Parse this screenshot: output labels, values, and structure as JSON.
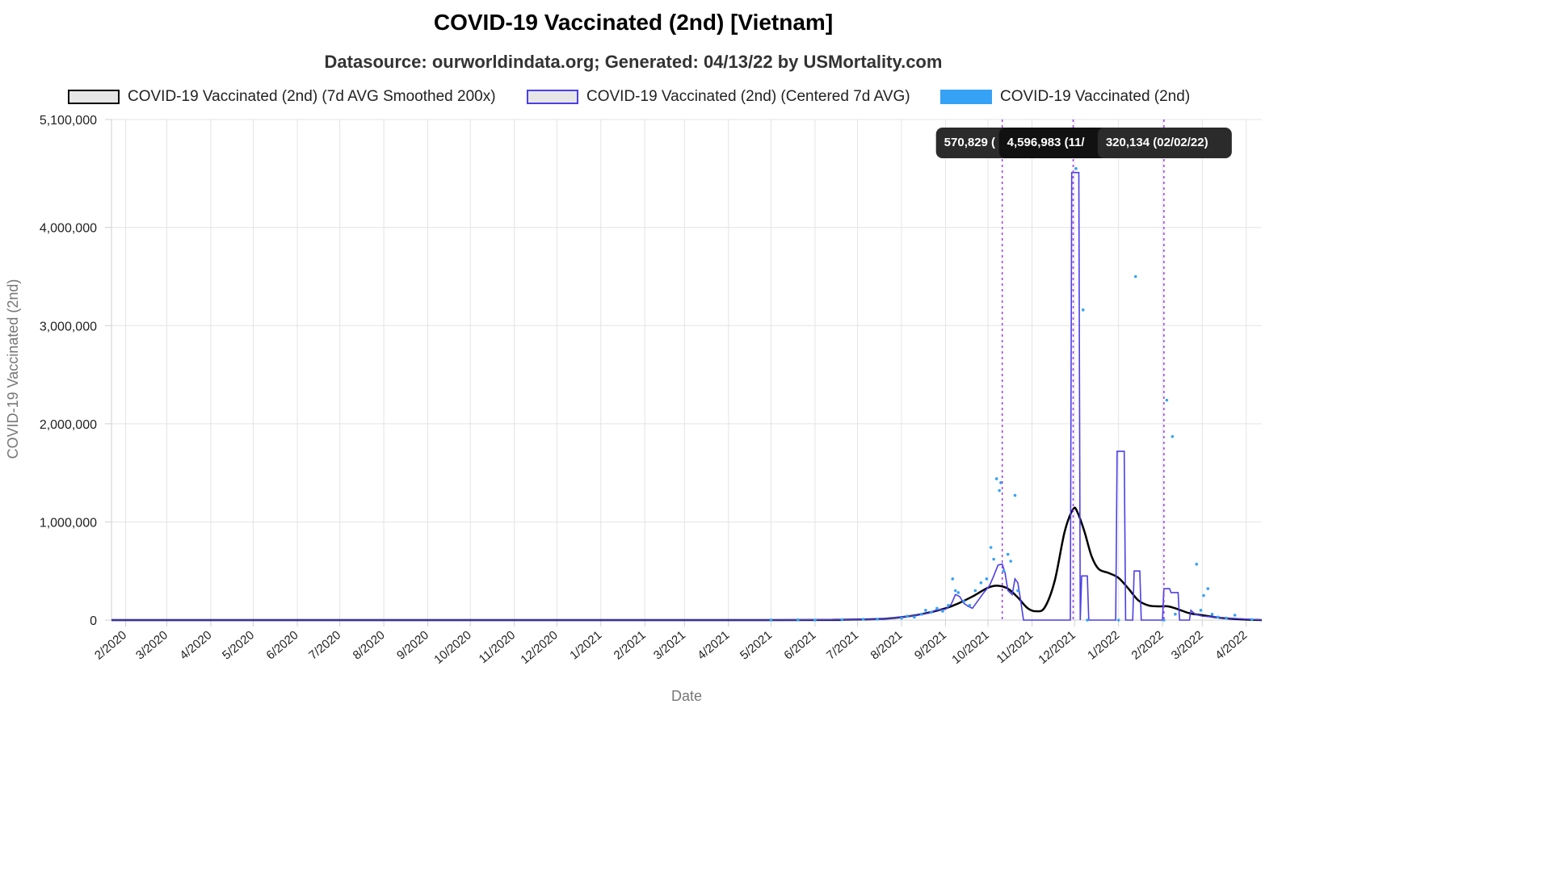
{
  "title": "COVID-19 Vaccinated (2nd) [Vietnam]",
  "subtitle": "Datasource: ourworldindata.org; Generated: 04/13/22 by USMortality.com",
  "legend": [
    {
      "label": "COVID-19 Vaccinated (2nd) (7d AVG Smoothed 200x)",
      "fill": "#e6e6e6",
      "border": "#000000"
    },
    {
      "label": "COVID-19 Vaccinated (2nd) (Centered 7d AVG)",
      "fill": "#e6e6e6",
      "border": "#4b3fe6"
    },
    {
      "label": "COVID-19 Vaccinated (2nd)",
      "fill": "#36a2f5",
      "border": "#36a2f5"
    }
  ],
  "tooltips": [
    "570,829 (",
    "4,596,983 (11/",
    "320,134 (02/02/22)"
  ],
  "chart_data": {
    "type": "line",
    "xlabel": "Date",
    "ylabel": "COVID-19 Vaccinated (2nd)",
    "x_range": [
      "2020-01-22",
      "2022-04-12"
    ],
    "ylim": [
      0,
      5100000
    ],
    "y_ticks": [
      0,
      1000000,
      2000000,
      3000000,
      4000000,
      5100000
    ],
    "y_tick_labels": [
      "0",
      "1,000,000",
      "2,000,000",
      "3,000,000",
      "4,000,000",
      "5,100,000"
    ],
    "x_ticks": [
      "2020-02-01",
      "2020-03-01",
      "2020-04-01",
      "2020-05-01",
      "2020-06-01",
      "2020-07-01",
      "2020-08-01",
      "2020-09-01",
      "2020-10-01",
      "2020-11-01",
      "2020-12-01",
      "2021-01-01",
      "2021-02-01",
      "2021-03-01",
      "2021-04-01",
      "2021-05-01",
      "2021-06-01",
      "2021-07-01",
      "2021-08-01",
      "2021-09-01",
      "2021-10-01",
      "2021-11-01",
      "2021-12-01",
      "2022-01-01",
      "2022-02-01",
      "2022-03-01",
      "2022-04-01"
    ],
    "x_tick_labels": [
      "2/2020",
      "3/2020",
      "4/2020",
      "5/2020",
      "6/2020",
      "7/2020",
      "8/2020",
      "9/2020",
      "10/2020",
      "11/2020",
      "12/2020",
      "1/2021",
      "2/2021",
      "3/2021",
      "4/2021",
      "5/2021",
      "6/2021",
      "7/2021",
      "8/2021",
      "9/2021",
      "10/2021",
      "11/2021",
      "12/2021",
      "1/2022",
      "2/2022",
      "3/2022",
      "4/2022"
    ],
    "grid": true,
    "legend_position": "top",
    "markers": [
      {
        "date": "2021-10-11",
        "value": 570829
      },
      {
        "date": "2021-11-30",
        "value": 4596983
      },
      {
        "date": "2022-02-02",
        "value": 320134
      }
    ],
    "series": [
      {
        "name": "COVID-19 Vaccinated (2nd) (7d AVG Smoothed 200x)",
        "color": "#000000",
        "style": "line",
        "points": [
          [
            "2020-01-22",
            0
          ],
          [
            "2021-05-01",
            0
          ],
          [
            "2021-06-15",
            3000
          ],
          [
            "2021-07-15",
            10000
          ],
          [
            "2021-08-01",
            30000
          ],
          [
            "2021-08-15",
            60000
          ],
          [
            "2021-09-01",
            120000
          ],
          [
            "2021-09-10",
            170000
          ],
          [
            "2021-09-20",
            240000
          ],
          [
            "2021-10-01",
            330000
          ],
          [
            "2021-10-08",
            350000
          ],
          [
            "2021-10-15",
            320000
          ],
          [
            "2021-10-22",
            230000
          ],
          [
            "2021-10-29",
            120000
          ],
          [
            "2021-11-04",
            90000
          ],
          [
            "2021-11-10",
            130000
          ],
          [
            "2021-11-17",
            400000
          ],
          [
            "2021-11-24",
            900000
          ],
          [
            "2021-11-30",
            1130000
          ],
          [
            "2021-12-03",
            1100000
          ],
          [
            "2021-12-08",
            900000
          ],
          [
            "2021-12-13",
            650000
          ],
          [
            "2021-12-18",
            520000
          ],
          [
            "2021-12-25",
            480000
          ],
          [
            "2022-01-01",
            430000
          ],
          [
            "2022-01-08",
            320000
          ],
          [
            "2022-01-15",
            200000
          ],
          [
            "2022-01-22",
            150000
          ],
          [
            "2022-01-29",
            140000
          ],
          [
            "2022-02-05",
            140000
          ],
          [
            "2022-02-12",
            110000
          ],
          [
            "2022-02-20",
            70000
          ],
          [
            "2022-03-01",
            50000
          ],
          [
            "2022-03-10",
            30000
          ],
          [
            "2022-03-20",
            15000
          ],
          [
            "2022-04-01",
            5000
          ],
          [
            "2022-04-12",
            0
          ]
        ]
      },
      {
        "name": "COVID-19 Vaccinated (2nd) (Centered 7d AVG)",
        "color": "#4b3fe6",
        "style": "line",
        "points": [
          [
            "2020-01-22",
            0
          ],
          [
            "2021-05-01",
            0
          ],
          [
            "2021-07-01",
            5000
          ],
          [
            "2021-07-15",
            8000
          ],
          [
            "2021-08-01",
            30000
          ],
          [
            "2021-08-10",
            45000
          ],
          [
            "2021-08-20",
            70000
          ],
          [
            "2021-08-25",
            100000
          ],
          [
            "2021-09-01",
            110000
          ],
          [
            "2021-09-05",
            160000
          ],
          [
            "2021-09-08",
            260000
          ],
          [
            "2021-09-11",
            240000
          ],
          [
            "2021-09-14",
            170000
          ],
          [
            "2021-09-17",
            140000
          ],
          [
            "2021-09-20",
            120000
          ],
          [
            "2021-09-24",
            200000
          ],
          [
            "2021-09-28",
            280000
          ],
          [
            "2021-10-02",
            350000
          ],
          [
            "2021-10-05",
            450000
          ],
          [
            "2021-10-08",
            560000
          ],
          [
            "2021-10-11",
            570829
          ],
          [
            "2021-10-13",
            480000
          ],
          [
            "2021-10-15",
            300000
          ],
          [
            "2021-10-18",
            260000
          ],
          [
            "2021-10-20",
            420000
          ],
          [
            "2021-10-22",
            380000
          ],
          [
            "2021-10-24",
            200000
          ],
          [
            "2021-10-26",
            0
          ],
          [
            "2021-11-28",
            0
          ],
          [
            "2021-11-29",
            4560000
          ],
          [
            "2021-12-04",
            4560000
          ],
          [
            "2021-12-05",
            0
          ],
          [
            "2021-12-06",
            450000
          ],
          [
            "2021-12-10",
            450000
          ],
          [
            "2021-12-11",
            0
          ],
          [
            "2021-12-30",
            0
          ],
          [
            "2021-12-31",
            1720000
          ],
          [
            "2022-01-05",
            1720000
          ],
          [
            "2022-01-06",
            0
          ],
          [
            "2022-01-11",
            0
          ],
          [
            "2022-01-12",
            500000
          ],
          [
            "2022-01-16",
            500000
          ],
          [
            "2022-01-17",
            0
          ],
          [
            "2022-02-01",
            0
          ],
          [
            "2022-02-02",
            320134
          ],
          [
            "2022-02-06",
            320000
          ],
          [
            "2022-02-07",
            280000
          ],
          [
            "2022-02-12",
            280000
          ],
          [
            "2022-02-13",
            0
          ],
          [
            "2022-02-20",
            0
          ],
          [
            "2022-02-21",
            100000
          ],
          [
            "2022-02-24",
            60000
          ],
          [
            "2022-03-01",
            40000
          ],
          [
            "2022-03-10",
            30000
          ],
          [
            "2022-03-20",
            20000
          ],
          [
            "2022-04-12",
            0
          ]
        ]
      },
      {
        "name": "COVID-19 Vaccinated (2nd)",
        "color": "#36a2f5",
        "style": "scatter",
        "points": [
          [
            "2021-05-01",
            2000
          ],
          [
            "2021-05-20",
            3000
          ],
          [
            "2021-06-01",
            1000
          ],
          [
            "2021-06-20",
            4000
          ],
          [
            "2021-07-05",
            8000
          ],
          [
            "2021-07-15",
            10000
          ],
          [
            "2021-08-01",
            20000
          ],
          [
            "2021-08-05",
            40000
          ],
          [
            "2021-08-10",
            30000
          ],
          [
            "2021-08-15",
            60000
          ],
          [
            "2021-08-18",
            100000
          ],
          [
            "2021-08-22",
            80000
          ],
          [
            "2021-08-26",
            120000
          ],
          [
            "2021-08-30",
            90000
          ],
          [
            "2021-09-03",
            150000
          ],
          [
            "2021-09-06",
            420000
          ],
          [
            "2021-09-08",
            300000
          ],
          [
            "2021-09-10",
            280000
          ],
          [
            "2021-09-14",
            190000
          ],
          [
            "2021-09-18",
            150000
          ],
          [
            "2021-09-22",
            300000
          ],
          [
            "2021-09-26",
            380000
          ],
          [
            "2021-09-30",
            420000
          ],
          [
            "2021-10-03",
            740000
          ],
          [
            "2021-10-05",
            620000
          ],
          [
            "2021-10-07",
            1440000
          ],
          [
            "2021-10-09",
            1320000
          ],
          [
            "2021-10-10",
            1400000
          ],
          [
            "2021-10-12",
            500000
          ],
          [
            "2021-10-15",
            670000
          ],
          [
            "2021-10-17",
            600000
          ],
          [
            "2021-10-20",
            1270000
          ],
          [
            "2021-10-22",
            300000
          ],
          [
            "2021-12-02",
            4600000
          ],
          [
            "2021-12-07",
            3160000
          ],
          [
            "2021-12-10",
            0
          ],
          [
            "2022-01-01",
            0
          ],
          [
            "2022-01-13",
            3500000
          ],
          [
            "2022-02-02",
            0
          ],
          [
            "2022-02-04",
            2240000
          ],
          [
            "2022-02-08",
            1870000
          ],
          [
            "2022-02-10",
            60000
          ],
          [
            "2022-02-25",
            570000
          ],
          [
            "2022-02-28",
            100000
          ],
          [
            "2022-03-02",
            250000
          ],
          [
            "2022-03-05",
            320000
          ],
          [
            "2022-03-08",
            60000
          ],
          [
            "2022-03-12",
            30000
          ],
          [
            "2022-03-18",
            20000
          ],
          [
            "2022-03-24",
            50000
          ],
          [
            "2022-04-05",
            5000
          ]
        ]
      }
    ]
  }
}
